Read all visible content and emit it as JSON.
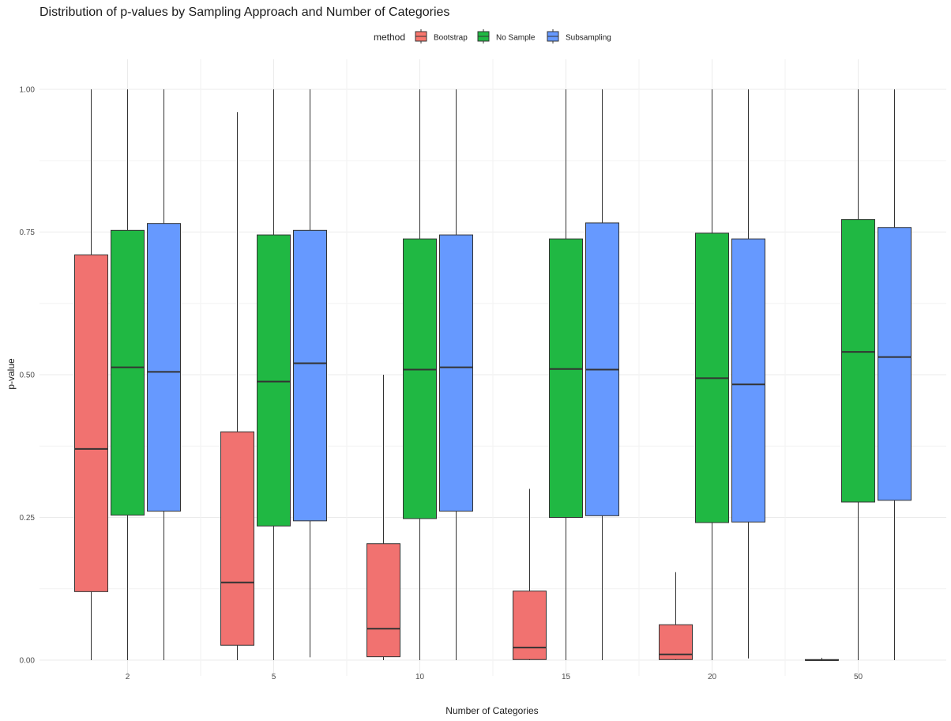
{
  "chart_data": {
    "type": "boxplot",
    "title": "Distribution of p-values by Sampling Approach and Number of Categories",
    "xlabel": "Number of Categories",
    "ylabel": "p-value",
    "categories": [
      "2",
      "5",
      "10",
      "15",
      "20",
      "50"
    ],
    "ylim": [
      0,
      1
    ],
    "y_ticks": [
      "0.00",
      "0.25",
      "0.50",
      "0.75",
      "1.00"
    ],
    "y_tick_values": [
      0,
      0.25,
      0.5,
      0.75,
      1.0
    ],
    "legend": {
      "title": "method",
      "position": "top",
      "entries": [
        {
          "name": "Bootstrap",
          "color": "#F8766D"
        },
        {
          "name": "No Sample",
          "color": "#20B843"
        },
        {
          "name": "Subsampling",
          "color": "#6699FF"
        }
      ]
    },
    "series": [
      {
        "name": "Bootstrap",
        "color": "#F17270",
        "boxes": [
          {
            "min": 0.0,
            "q1": 0.12,
            "median": 0.37,
            "q3": 0.71,
            "max": 1.0
          },
          {
            "min": 0.0,
            "q1": 0.026,
            "median": 0.136,
            "q3": 0.4,
            "max": 0.96
          },
          {
            "min": 0.0,
            "q1": 0.006,
            "median": 0.055,
            "q3": 0.204,
            "max": 0.5
          },
          {
            "min": 0.0,
            "q1": 0.001,
            "median": 0.022,
            "q3": 0.121,
            "max": 0.3
          },
          {
            "min": 0.0,
            "q1": 0.001,
            "median": 0.01,
            "q3": 0.062,
            "max": 0.154
          },
          {
            "min": 0.0,
            "q1": 0.0,
            "median": 0.0,
            "q3": 0.001,
            "max": 0.004
          }
        ]
      },
      {
        "name": "No Sample",
        "color": "#20B843",
        "boxes": [
          {
            "min": 0.0,
            "q1": 0.254,
            "median": 0.513,
            "q3": 0.753,
            "max": 1.0
          },
          {
            "min": 0.0,
            "q1": 0.235,
            "median": 0.488,
            "q3": 0.745,
            "max": 1.0
          },
          {
            "min": 0.0,
            "q1": 0.248,
            "median": 0.509,
            "q3": 0.738,
            "max": 1.0
          },
          {
            "min": 0.0,
            "q1": 0.25,
            "median": 0.51,
            "q3": 0.738,
            "max": 1.0
          },
          {
            "min": 0.0,
            "q1": 0.241,
            "median": 0.494,
            "q3": 0.748,
            "max": 1.0
          },
          {
            "min": 0.0,
            "q1": 0.277,
            "median": 0.54,
            "q3": 0.772,
            "max": 1.0
          }
        ]
      },
      {
        "name": "Subsampling",
        "color": "#6699FF",
        "boxes": [
          {
            "min": 0.0,
            "q1": 0.261,
            "median": 0.505,
            "q3": 0.765,
            "max": 1.0
          },
          {
            "min": 0.005,
            "q1": 0.244,
            "median": 0.52,
            "q3": 0.753,
            "max": 1.0
          },
          {
            "min": 0.0,
            "q1": 0.261,
            "median": 0.513,
            "q3": 0.745,
            "max": 1.0
          },
          {
            "min": 0.0,
            "q1": 0.253,
            "median": 0.509,
            "q3": 0.766,
            "max": 1.0
          },
          {
            "min": 0.003,
            "q1": 0.242,
            "median": 0.483,
            "q3": 0.738,
            "max": 1.0
          },
          {
            "min": 0.0,
            "q1": 0.28,
            "median": 0.531,
            "q3": 0.758,
            "max": 1.0
          }
        ]
      }
    ]
  }
}
